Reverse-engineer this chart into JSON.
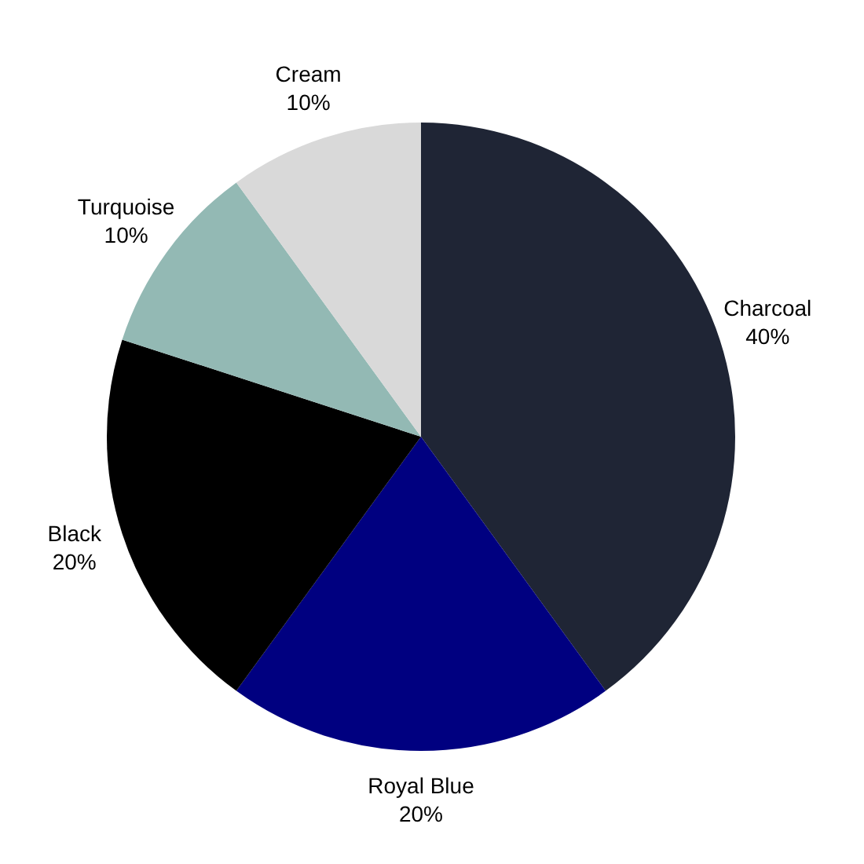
{
  "chart_data": {
    "type": "pie",
    "categories": [
      "Charcoal",
      "Royal Blue",
      "Black",
      "Turquoise",
      "Cream"
    ],
    "values": [
      40,
      20,
      20,
      10,
      10
    ],
    "colors": [
      "#1f2535",
      "#000080",
      "#000000",
      "#93b9b4",
      "#d9d9d9"
    ],
    "value_labels": [
      "40%",
      "20%",
      "20%",
      "10%",
      "10%"
    ],
    "legend": false
  }
}
